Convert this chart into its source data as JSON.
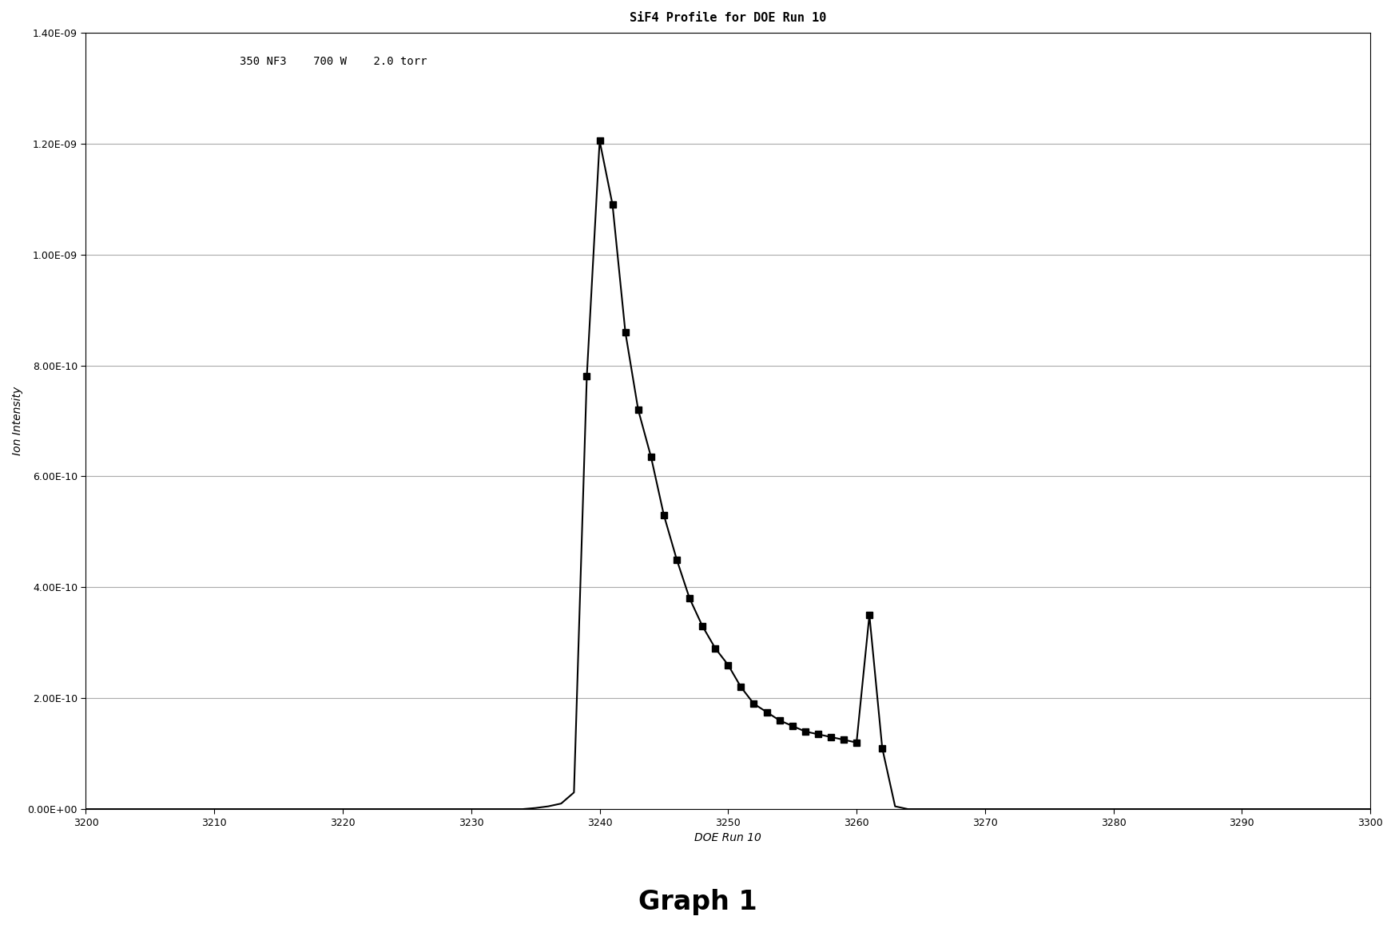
{
  "title": "SiF4 Profile for DOE Run 10",
  "xlabel": "DOE Run 10",
  "ylabel": "Ion Intensity",
  "annotation": "350 NF3    700 W    2.0 torr",
  "graph_label": "Graph 1",
  "xlim": [
    3200,
    3300
  ],
  "ylim": [
    0.0,
    1.4e-09
  ],
  "xticks": [
    3200,
    3210,
    3220,
    3230,
    3240,
    3250,
    3260,
    3270,
    3280,
    3290,
    3300
  ],
  "ytick_values": [
    0.0,
    2e-10,
    4e-10,
    6e-10,
    8e-10,
    1e-09,
    1.2e-09,
    1.4e-09
  ],
  "x": [
    3200,
    3205,
    3210,
    3215,
    3220,
    3225,
    3230,
    3234,
    3235,
    3236,
    3237,
    3238,
    3239,
    3240,
    3241,
    3242,
    3243,
    3244,
    3245,
    3246,
    3247,
    3248,
    3249,
    3250,
    3251,
    3252,
    3253,
    3254,
    3255,
    3256,
    3257,
    3258,
    3259,
    3260,
    3261,
    3262,
    3263,
    3264,
    3265,
    3270,
    3275,
    3280,
    3285,
    3290,
    3295,
    3300
  ],
  "y": [
    0.0,
    0.0,
    0.0,
    0.0,
    0.0,
    0.0,
    0.0,
    0.0,
    2e-12,
    5e-12,
    1e-11,
    3e-11,
    7.8e-10,
    1.205e-09,
    1.09e-09,
    8.6e-10,
    7.2e-10,
    6.35e-10,
    5.3e-10,
    4.5e-10,
    3.8e-10,
    3.3e-10,
    2.9e-10,
    2.6e-10,
    2.2e-10,
    1.9e-10,
    1.75e-10,
    1.6e-10,
    1.5e-10,
    1.4e-10,
    1.35e-10,
    1.3e-10,
    1.25e-10,
    1.2e-10,
    3.5e-10,
    1.1e-10,
    5e-12,
    0.0,
    0.0,
    0.0,
    0.0,
    0.0,
    0.0,
    0.0,
    0.0,
    0.0
  ],
  "marker_x": [
    3239,
    3240,
    3241,
    3242,
    3243,
    3244,
    3245,
    3246,
    3247,
    3248,
    3249,
    3250,
    3251,
    3252,
    3253,
    3254,
    3255,
    3256,
    3257,
    3258,
    3259,
    3260,
    3261,
    3262
  ],
  "marker_y": [
    7.8e-10,
    1.205e-09,
    1.09e-09,
    8.6e-10,
    7.2e-10,
    6.35e-10,
    5.3e-10,
    4.5e-10,
    3.8e-10,
    3.3e-10,
    2.9e-10,
    2.6e-10,
    2.2e-10,
    1.9e-10,
    1.75e-10,
    1.6e-10,
    1.5e-10,
    1.4e-10,
    1.35e-10,
    1.3e-10,
    1.25e-10,
    1.2e-10,
    3.5e-10,
    1.1e-10
  ],
  "line_color": "#000000",
  "marker_color": "#000000",
  "background_color": "#ffffff",
  "plot_bg_color": "#ffffff",
  "title_fontsize": 11,
  "label_fontsize": 10,
  "tick_fontsize": 9,
  "annotation_fontsize": 10,
  "graph_label_fontsize": 24
}
